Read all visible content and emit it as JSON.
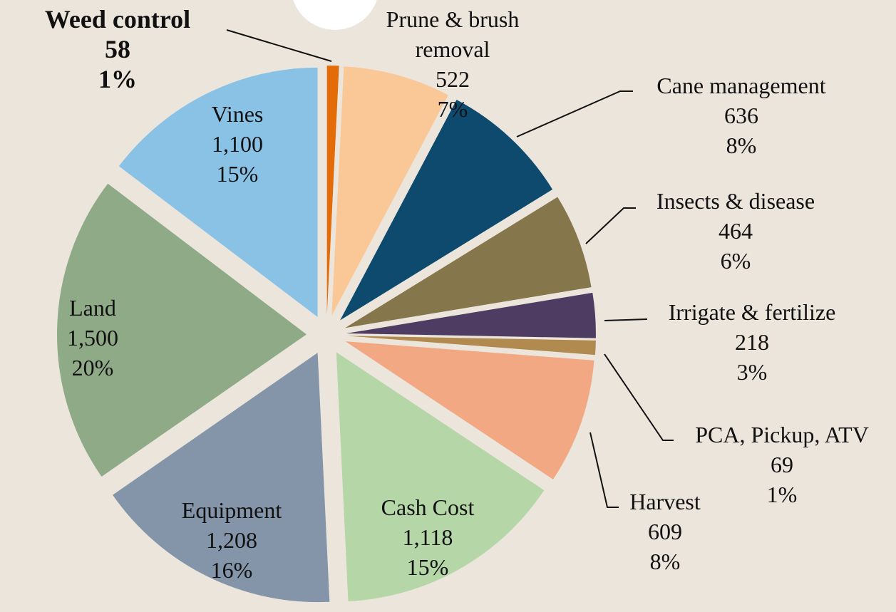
{
  "chart_data": {
    "type": "pie",
    "categories": [
      "Weed control",
      "Prune & brush removal",
      "Cane management",
      "Insects & disease",
      "Irrigate & fertilize",
      "PCA, Pickup, ATV",
      "Harvest",
      "Cash Cost",
      "Equipment",
      "Land",
      "Vines"
    ],
    "values": [
      58,
      522,
      636,
      464,
      218,
      69,
      609,
      1118,
      1208,
      1500,
      1100
    ],
    "value_labels": [
      "58",
      "522",
      "636",
      "464",
      "218",
      "69",
      "609",
      "1,118",
      "1,208",
      "1,500",
      "1,100"
    ],
    "percent_labels": [
      "1%",
      "7%",
      "8%",
      "6%",
      "3%",
      "1%",
      "8%",
      "15%",
      "16%",
      "20%",
      "15%"
    ],
    "colors": [
      "#e36c09",
      "#fac896",
      "#0d4a6e",
      "#85764b",
      "#4f3c63",
      "#b08a4e",
      "#f2a983",
      "#b5d6a7",
      "#8495aa",
      "#8faa86",
      "#8ac2e6"
    ]
  }
}
